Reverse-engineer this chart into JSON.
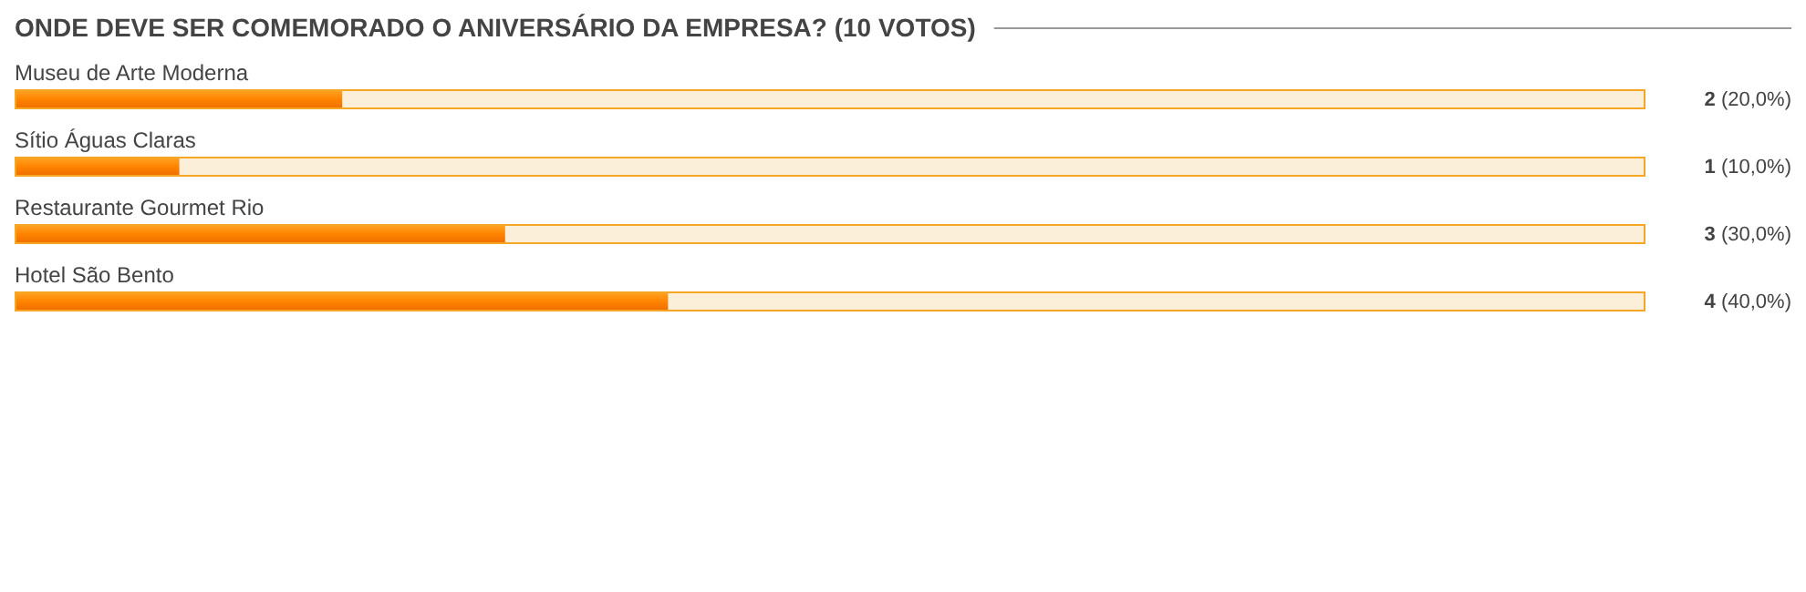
{
  "chart_data": {
    "type": "bar",
    "orientation": "horizontal",
    "title": "ONDE DEVE SER COMEMORADO O ANIVERSÁRIO DA EMPRESA? (10 VOTOS)",
    "categories": [
      "Museu de Arte Moderna",
      "Sítio Águas Claras",
      "Restaurante Gourmet Rio",
      "Hotel São Bento"
    ],
    "values": [
      2,
      1,
      3,
      4
    ],
    "value_labels": [
      "2 (20,0%)",
      "1 (10,0%)",
      "3 (30,0%)",
      "4 (40,0%)"
    ],
    "color": "#ff8400",
    "xlim": [
      0,
      10
    ]
  }
}
